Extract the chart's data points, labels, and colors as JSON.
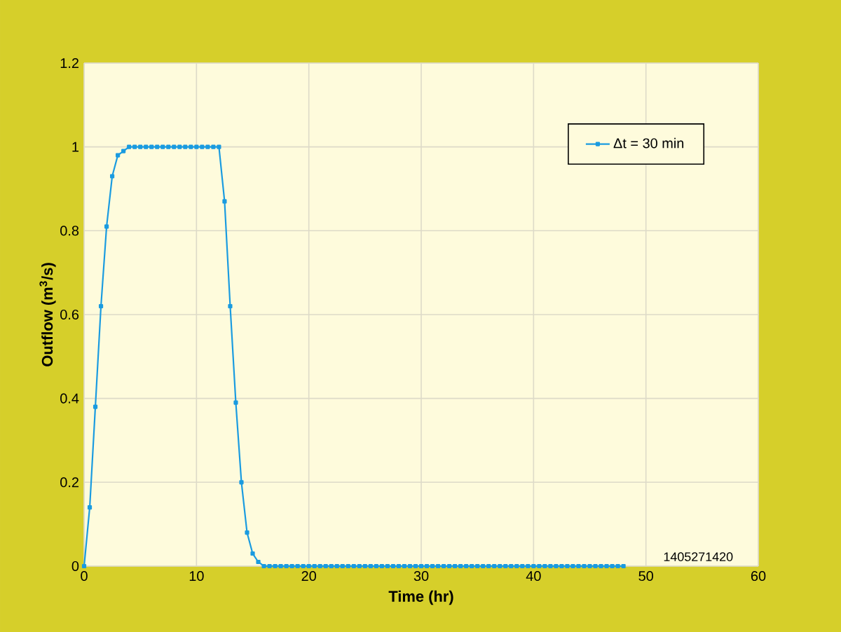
{
  "chart_data": {
    "type": "line",
    "xlabel": "Time (hr)",
    "ylabel": "Outflow (m$^{3}$/s)",
    "x": [
      0,
      0.5,
      1,
      1.5,
      2,
      2.5,
      3,
      3.5,
      4,
      4.5,
      5,
      5.5,
      6,
      6.5,
      7,
      7.5,
      8,
      8.5,
      9,
      9.5,
      10,
      10.5,
      11,
      11.5,
      12,
      12.5,
      13,
      13.5,
      14,
      14.5,
      15,
      15.5,
      16,
      16.5,
      17,
      17.5,
      18,
      18.5,
      19,
      19.5,
      20,
      20.5,
      21,
      21.5,
      22,
      22.5,
      23,
      23.5,
      24,
      24.5,
      25,
      25.5,
      26,
      26.5,
      27,
      27.5,
      28,
      28.5,
      29,
      29.5,
      30,
      30.5,
      31,
      31.5,
      32,
      32.5,
      33,
      33.5,
      34,
      34.5,
      35,
      35.5,
      36,
      36.5,
      37,
      37.5,
      38,
      38.5,
      39,
      39.5,
      40,
      40.5,
      41,
      41.5,
      42,
      42.5,
      43,
      43.5,
      44,
      44.5,
      45,
      45.5,
      46,
      46.5,
      47,
      47.5,
      48
    ],
    "series": [
      {
        "name": "Δt = 30 min",
        "color": "#1a9be0",
        "values": [
          0,
          0.14,
          0.38,
          0.62,
          0.81,
          0.93,
          0.98,
          0.99,
          1.0,
          1,
          1,
          1,
          1,
          1,
          1,
          1,
          1,
          1,
          1,
          1,
          1,
          1,
          1,
          1,
          1,
          0.87,
          0.62,
          0.39,
          0.2,
          0.08,
          0.03,
          0.01,
          0,
          0,
          0,
          0,
          0,
          0,
          0,
          0,
          0,
          0,
          0,
          0,
          0,
          0,
          0,
          0,
          0,
          0,
          0,
          0,
          0,
          0,
          0,
          0,
          0,
          0,
          0,
          0,
          0,
          0,
          0,
          0,
          0,
          0,
          0,
          0,
          0,
          0,
          0,
          0,
          0,
          0,
          0,
          0,
          0,
          0,
          0,
          0,
          0,
          0,
          0,
          0,
          0,
          0,
          0,
          0,
          0,
          0,
          0,
          0,
          0,
          0,
          0,
          0,
          0
        ]
      }
    ],
    "xlim": [
      0,
      60
    ],
    "xticks": [
      0,
      10,
      20,
      30,
      40,
      50,
      60
    ],
    "ylim": [
      0,
      1.2
    ],
    "yticks": [
      0,
      0.2,
      0.4,
      0.6,
      0.8,
      1,
      1.2
    ],
    "grid": true,
    "legend": "top right",
    "marker": "square",
    "annotations": [
      "1405271420"
    ]
  }
}
